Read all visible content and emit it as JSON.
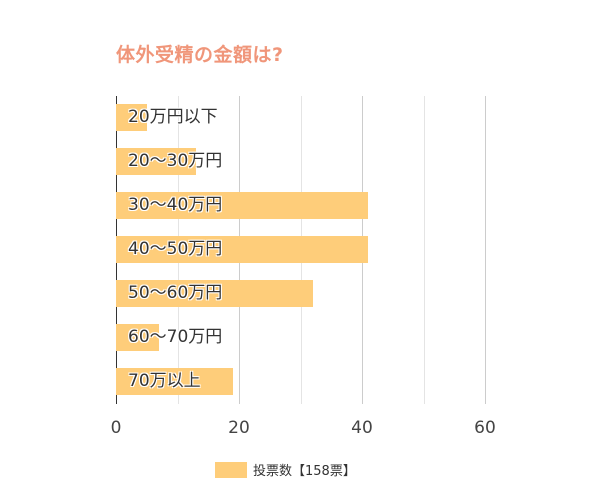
{
  "title": "体外受精の金額は?",
  "chart_data": {
    "type": "bar",
    "orientation": "horizontal",
    "title": "体外受精の金額は?",
    "categories": [
      "20万円以下",
      "20～30万円",
      "30～40万円",
      "40～50万円",
      "50～60万円",
      "60～70万円",
      "70万以上"
    ],
    "series": [
      {
        "name": "投票数【158票】",
        "values": [
          5,
          13,
          41,
          41,
          32,
          7,
          19
        ],
        "color": "#fecd7a"
      }
    ],
    "xlabel": "",
    "ylabel": "",
    "xlim": [
      0,
      62
    ],
    "xticks": [
      "0",
      "20",
      "40",
      "60"
    ],
    "grid": true,
    "legend_position": "bottom"
  },
  "ticks": [
    "0",
    "20",
    "40",
    "60"
  ],
  "legend": {
    "label": "投票数【158票】"
  }
}
